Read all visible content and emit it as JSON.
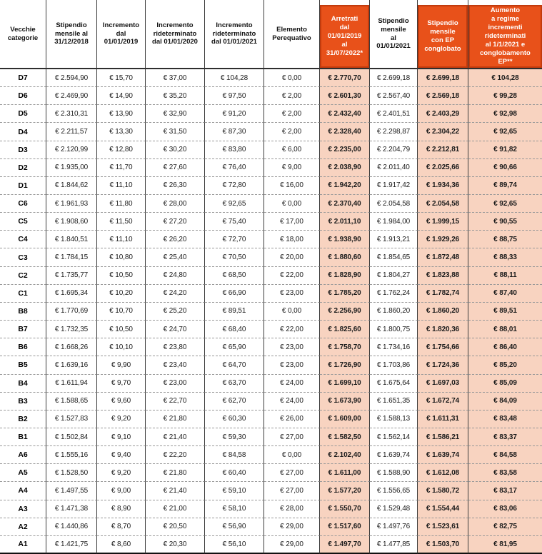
{
  "table": {
    "columns": [
      {
        "id": "vecchie-categorie",
        "label": "Vecchie\ncategorie",
        "highlight": false
      },
      {
        "id": "stipendio-2018",
        "label": "Stipendio\nmensile al\n31/12/2018",
        "highlight": false
      },
      {
        "id": "incremento-2019",
        "label": "Incremento\ndal\n01/01/2019",
        "highlight": false
      },
      {
        "id": "incremento-rid-2020",
        "label": "Incremento\nrideterminato\ndal 01/01/2020",
        "highlight": false
      },
      {
        "id": "incremento-rid-2021",
        "label": "Incremento\nrideterminato\ndal 01/01/2021",
        "highlight": false
      },
      {
        "id": "elemento-perequativo",
        "label": "Elemento\nPerequativo",
        "highlight": false
      },
      {
        "id": "arretrati",
        "label": "Arretrati\ndal\n01/01/2019\nal\n31/07/2022*",
        "highlight": true
      },
      {
        "id": "stipendio-2021",
        "label": "Stipendio\nmensile\nal\n01/01/2021",
        "highlight": false
      },
      {
        "id": "stipendio-ep",
        "label": "Stipendio\nmensile\ncon EP\nconglobato",
        "highlight": true
      },
      {
        "id": "aumento-regime",
        "label": "Aumento\na regime\nincrementi\nrideterminati\nal 1/1/2021 e\nconglobamento\nEP**",
        "highlight": true
      }
    ],
    "rows": [
      {
        "category": "D7",
        "values": [
          "€ 2.594,90",
          "€ 15,70",
          "€ 37,00",
          "€ 104,28",
          "€ 0,00",
          "€ 2.770,70",
          "€ 2.699,18",
          "€ 2.699,18",
          "€ 104,28"
        ]
      },
      {
        "category": "D6",
        "values": [
          "€ 2.469,90",
          "€ 14,90",
          "€ 35,20",
          "€ 97,50",
          "€ 2,00",
          "€ 2.601,30",
          "€ 2.567,40",
          "€ 2.569,18",
          "€ 99,28"
        ]
      },
      {
        "category": "D5",
        "values": [
          "€ 2.310,31",
          "€ 13,90",
          "€ 32,90",
          "€ 91,20",
          "€ 2,00",
          "€ 2.432,40",
          "€ 2.401,51",
          "€ 2.403,29",
          "€ 92,98"
        ]
      },
      {
        "category": "D4",
        "values": [
          "€ 2.211,57",
          "€ 13,30",
          "€ 31,50",
          "€ 87,30",
          "€ 2,00",
          "€ 2.328,40",
          "€ 2.298,87",
          "€ 2.304,22",
          "€ 92,65"
        ]
      },
      {
        "category": "D3",
        "values": [
          "€ 2.120,99",
          "€ 12,80",
          "€ 30,20",
          "€ 83,80",
          "€ 6,00",
          "€ 2.235,00",
          "€ 2.204,79",
          "€ 2.212,81",
          "€ 91,82"
        ]
      },
      {
        "category": "D2",
        "values": [
          "€ 1.935,00",
          "€ 11,70",
          "€ 27,60",
          "€ 76,40",
          "€ 9,00",
          "€ 2.038,90",
          "€ 2.011,40",
          "€ 2.025,66",
          "€ 90,66"
        ]
      },
      {
        "category": "D1",
        "values": [
          "€ 1.844,62",
          "€ 11,10",
          "€ 26,30",
          "€ 72,80",
          "€ 16,00",
          "€ 1.942,20",
          "€ 1.917,42",
          "€ 1.934,36",
          "€ 89,74"
        ]
      },
      {
        "category": "C6",
        "values": [
          "€ 1.961,93",
          "€ 11,80",
          "€ 28,00",
          "€ 92,65",
          "€ 0,00",
          "€ 2.370,40",
          "€ 2.054,58",
          "€ 2.054,58",
          "€ 92,65"
        ]
      },
      {
        "category": "C5",
        "values": [
          "€ 1.908,60",
          "€ 11,50",
          "€ 27,20",
          "€ 75,40",
          "€ 17,00",
          "€ 2.011,10",
          "€ 1.984,00",
          "€ 1.999,15",
          "€ 90,55"
        ]
      },
      {
        "category": "C4",
        "values": [
          "€ 1.840,51",
          "€ 11,10",
          "€ 26,20",
          "€ 72,70",
          "€ 18,00",
          "€ 1.938,90",
          "€ 1.913,21",
          "€ 1.929,26",
          "€ 88,75"
        ]
      },
      {
        "category": "C3",
        "values": [
          "€ 1.784,15",
          "€ 10,80",
          "€ 25,40",
          "€ 70,50",
          "€ 20,00",
          "€ 1.880,60",
          "€ 1.854,65",
          "€ 1.872,48",
          "€ 88,33"
        ]
      },
      {
        "category": "C2",
        "values": [
          "€ 1.735,77",
          "€ 10,50",
          "€ 24,80",
          "€ 68,50",
          "€ 22,00",
          "€ 1.828,90",
          "€ 1.804,27",
          "€ 1.823,88",
          "€ 88,11"
        ]
      },
      {
        "category": "C1",
        "values": [
          "€ 1.695,34",
          "€ 10,20",
          "€ 24,20",
          "€ 66,90",
          "€ 23,00",
          "€ 1.785,20",
          "€ 1.762,24",
          "€ 1.782,74",
          "€ 87,40"
        ]
      },
      {
        "category": "B8",
        "values": [
          "€ 1.770,69",
          "€ 10,70",
          "€ 25,20",
          "€ 89,51",
          "€ 0,00",
          "€ 2.256,90",
          "€ 1.860,20",
          "€ 1.860,20",
          "€ 89,51"
        ]
      },
      {
        "category": "B7",
        "values": [
          "€ 1.732,35",
          "€ 10,50",
          "€ 24,70",
          "€ 68,40",
          "€ 22,00",
          "€ 1.825,60",
          "€ 1.800,75",
          "€ 1.820,36",
          "€ 88,01"
        ]
      },
      {
        "category": "B6",
        "values": [
          "€ 1.668,26",
          "€ 10,10",
          "€ 23,80",
          "€ 65,90",
          "€ 23,00",
          "€ 1.758,70",
          "€ 1.734,16",
          "€ 1.754,66",
          "€ 86,40"
        ]
      },
      {
        "category": "B5",
        "values": [
          "€ 1.639,16",
          "€ 9,90",
          "€ 23,40",
          "€ 64,70",
          "€ 23,00",
          "€ 1.726,90",
          "€ 1.703,86",
          "€ 1.724,36",
          "€ 85,20"
        ]
      },
      {
        "category": "B4",
        "values": [
          "€ 1.611,94",
          "€ 9,70",
          "€ 23,00",
          "€ 63,70",
          "€ 24,00",
          "€ 1.699,10",
          "€ 1.675,64",
          "€ 1.697,03",
          "€ 85,09"
        ]
      },
      {
        "category": "B3",
        "values": [
          "€ 1.588,65",
          "€ 9,60",
          "€ 22,70",
          "€ 62,70",
          "€ 24,00",
          "€ 1.673,90",
          "€ 1.651,35",
          "€ 1.672,74",
          "€ 84,09"
        ]
      },
      {
        "category": "B2",
        "values": [
          "€ 1.527,83",
          "€ 9,20",
          "€ 21,80",
          "€ 60,30",
          "€ 26,00",
          "€ 1.609,00",
          "€ 1.588,13",
          "€ 1.611,31",
          "€ 83,48"
        ]
      },
      {
        "category": "B1",
        "values": [
          "€ 1.502,84",
          "€ 9,10",
          "€ 21,40",
          "€ 59,30",
          "€ 27,00",
          "€ 1.582,50",
          "€ 1.562,14",
          "€ 1.586,21",
          "€ 83,37"
        ]
      },
      {
        "category": "A6",
        "values": [
          "€ 1.555,16",
          "€ 9,40",
          "€ 22,20",
          "€ 84,58",
          "€ 0,00",
          "€ 2.102,40",
          "€ 1.639,74",
          "€ 1.639,74",
          "€ 84,58"
        ]
      },
      {
        "category": "A5",
        "values": [
          "€ 1.528,50",
          "€ 9,20",
          "€ 21,80",
          "€ 60,40",
          "€ 27,00",
          "€ 1.611,00",
          "€ 1.588,90",
          "€ 1.612,08",
          "€ 83,58"
        ]
      },
      {
        "category": "A4",
        "values": [
          "€ 1.497,55",
          "€ 9,00",
          "€ 21,40",
          "€ 59,10",
          "€ 27,00",
          "€ 1.577,20",
          "€ 1.556,65",
          "€ 1.580,72",
          "€ 83,17"
        ]
      },
      {
        "category": "A3",
        "values": [
          "€ 1.471,38",
          "€ 8,90",
          "€ 21,00",
          "€ 58,10",
          "€ 28,00",
          "€ 1.550,70",
          "€ 1.529,48",
          "€ 1.554,44",
          "€ 83,06"
        ]
      },
      {
        "category": "A2",
        "values": [
          "€ 1.440,86",
          "€ 8,70",
          "€ 20,50",
          "€ 56,90",
          "€ 29,00",
          "€ 1.517,60",
          "€ 1.497,76",
          "€ 1.523,61",
          "€ 82,75"
        ]
      },
      {
        "category": "A1",
        "values": [
          "€ 1.421,75",
          "€ 8,60",
          "€ 20,30",
          "€ 56,10",
          "€ 29,00",
          "€ 1.497,70",
          "€ 1.477,85",
          "€ 1.503,70",
          "€ 81,95"
        ]
      }
    ]
  },
  "colors": {
    "highlight_header_bg": "#E8511A",
    "highlight_header_border": "#C23B0D",
    "highlight_cell_bg": "#F8D3C0",
    "column_line": "#3C3C3C",
    "row_dash": "#999999",
    "text": "#1B1B1B"
  }
}
